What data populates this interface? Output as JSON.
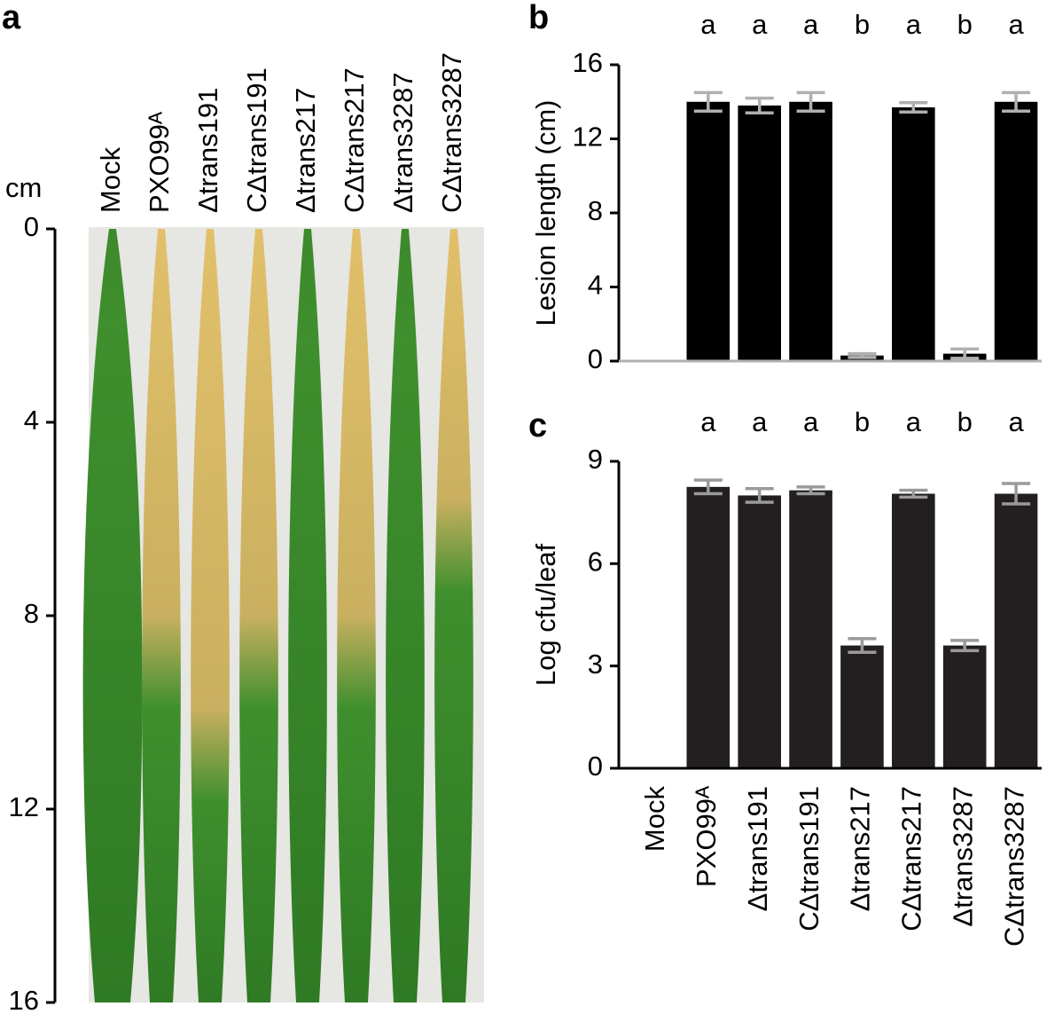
{
  "photo_panel": {
    "panel_label": "a",
    "unit": "cm",
    "lim": [
      0,
      16
    ],
    "ticks": [
      0,
      4,
      8,
      12,
      16
    ],
    "lanes": [
      "Mock",
      "PXO99ᴬ",
      "Δtrans191",
      "CΔtrans191",
      "Δtrans217",
      "CΔtrans217",
      "Δtrans3287",
      "CΔtrans3287"
    ]
  },
  "chart_data": [
    {
      "type": "bar",
      "panel_label": "b",
      "y_label": "Lesion length (cm)",
      "values": [
        0,
        14,
        13.8,
        14,
        0.3,
        13.7,
        0.4,
        14
      ],
      "errors": [
        null,
        0.5,
        0.4,
        0.5,
        0.1,
        0.25,
        0.25,
        0.5
      ],
      "annotations": [
        null,
        "a",
        "a",
        "a",
        "b",
        "a",
        "b",
        "a"
      ],
      "color": "#000000",
      "error_color": "#b0b0b0",
      "ylim": [
        0,
        16
      ],
      "yticks": [
        0,
        4,
        8,
        12,
        16
      ]
    },
    {
      "type": "bar",
      "panel_label": "c",
      "y_label": "Log cfu/leaf",
      "categories": [
        "Mock",
        "PXO99ᴬ",
        "Δtrans191",
        "CΔtrans191",
        "Δtrans217",
        "CΔtrans217",
        "Δtrans3287",
        "CΔtrans3287"
      ],
      "values": [
        0,
        8.25,
        8.0,
        8.15,
        3.6,
        8.05,
        3.6,
        8.05
      ],
      "errors": [
        null,
        0.2,
        0.2,
        0.1,
        0.2,
        0.1,
        0.15,
        0.3
      ],
      "annotations": [
        null,
        "a",
        "a",
        "a",
        "b",
        "a",
        "b",
        "a"
      ],
      "color": "#231f20",
      "error_color": "#9a9a9a",
      "ylim": [
        0,
        9
      ],
      "yticks": [
        0,
        3,
        6,
        9
      ]
    }
  ]
}
